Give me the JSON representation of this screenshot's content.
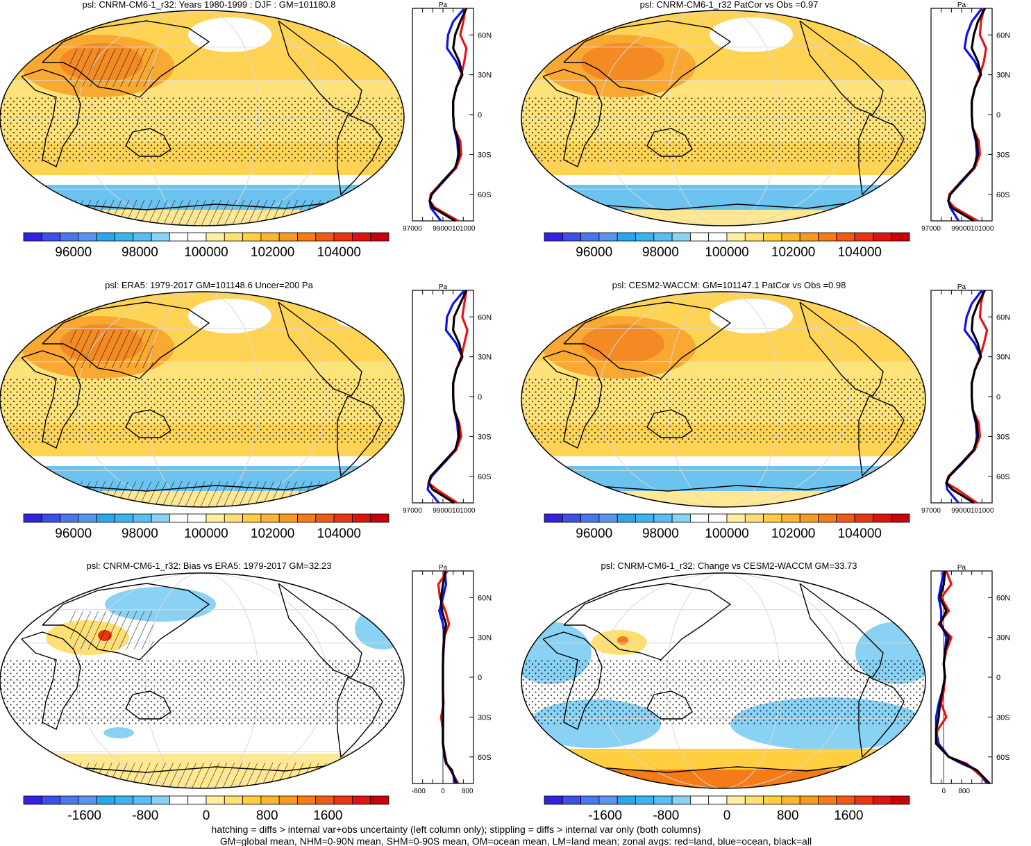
{
  "chart_data": [
    {
      "type": "heatmap",
      "title": "psl: CNRM-CM6-1_r32: Years 1980-1999 : DJF : GM=101180.8",
      "colorbar_ticks": [
        "96000",
        "98000",
        "100000",
        "102000",
        "104000"
      ],
      "colorbar_range": [
        94500,
        105500
      ],
      "colorbar_colors": [
        "#3322dd",
        "#3d4fe6",
        "#4a76ee",
        "#5a94f2",
        "#2ba6ee",
        "#3bb3ee",
        "#58bff0",
        "#8ad2f4",
        "#ffffff",
        "#ffffff",
        "#ffefa0",
        "#ffe070",
        "#ffcf40",
        "#fbb530",
        "#f89a20",
        "#f57a18",
        "#f05a14",
        "#e83612",
        "#dc1410",
        "#c8000a"
      ],
      "profile": {
        "x_ticks": [
          "97000",
          "99000101000"
        ],
        "x_range": [
          97000,
          103000
        ],
        "y_unit": "Pa",
        "lat_ticks": [
          "60N",
          "30N",
          "0",
          "30S",
          "60S"
        ]
      },
      "zonal_avgs": {
        "lat": [
          80,
          70,
          60,
          50,
          40,
          30,
          20,
          10,
          0,
          -10,
          -20,
          -30,
          -40,
          -50,
          -60,
          -65,
          -70,
          -80
        ],
        "land": [
          102200,
          102000,
          101700,
          102300,
          102100,
          101800,
          101300,
          101000,
          101000,
          101100,
          101700,
          101800,
          101300,
          100000,
          98800,
          98700,
          99200,
          101500
        ],
        "ocean": [
          102100,
          101000,
          100500,
          100400,
          101300,
          101900,
          101300,
          101000,
          101000,
          101100,
          101400,
          101500,
          101300,
          100100,
          98900,
          98700,
          98800,
          99800
        ],
        "all": [
          102300,
          101700,
          101200,
          101000,
          101600,
          101900,
          101300,
          101000,
          101000,
          101100,
          101500,
          101600,
          101200,
          100000,
          98900,
          98700,
          99000,
          101200
        ]
      },
      "overlays": [
        "hatching",
        "stippling"
      ]
    },
    {
      "type": "heatmap",
      "title": "psl: CNRM-CM6-1_r32 PatCor vs Obs =0.97",
      "colorbar_ticks": [
        "96000",
        "98000",
        "100000",
        "102000",
        "104000"
      ],
      "colorbar_range": [
        94500,
        105500
      ],
      "colorbar_colors": [
        "#3322dd",
        "#3d4fe6",
        "#4a76ee",
        "#5a94f2",
        "#2ba6ee",
        "#3bb3ee",
        "#58bff0",
        "#8ad2f4",
        "#ffffff",
        "#ffffff",
        "#ffefa0",
        "#ffe070",
        "#ffcf40",
        "#fbb530",
        "#f89a20",
        "#f57a18",
        "#f05a14",
        "#e83612",
        "#dc1410",
        "#c8000a"
      ],
      "profile": {
        "x_ticks": [
          "97000",
          "99000101000"
        ],
        "x_range": [
          97000,
          103000
        ],
        "y_unit": "Pa",
        "lat_ticks": [
          "60N",
          "30N",
          "0",
          "30S",
          "60S"
        ]
      },
      "zonal_avgs": {
        "lat": [
          80,
          70,
          60,
          50,
          40,
          30,
          20,
          10,
          0,
          -10,
          -20,
          -30,
          -40,
          -50,
          -60,
          -65,
          -70,
          -80
        ],
        "land": [
          102200,
          101900,
          101800,
          102400,
          102200,
          101800,
          101300,
          101000,
          101000,
          101100,
          101700,
          101800,
          101300,
          100000,
          98800,
          98700,
          99300,
          101600
        ],
        "ocean": [
          102000,
          101000,
          100500,
          100300,
          101300,
          101900,
          101300,
          101000,
          101000,
          101100,
          101400,
          101500,
          101300,
          100100,
          98900,
          98700,
          98900,
          99700
        ],
        "all": [
          102300,
          101600,
          101200,
          101000,
          101600,
          101900,
          101300,
          101000,
          101000,
          101100,
          101500,
          101600,
          101200,
          100000,
          98900,
          98700,
          99000,
          101200
        ]
      },
      "overlays": [
        "stippling"
      ]
    },
    {
      "type": "heatmap",
      "title": "psl: ERA5: 1979-2017 GM=101148.6 Uncer=200 Pa",
      "colorbar_ticks": [
        "96000",
        "98000",
        "100000",
        "102000",
        "104000"
      ],
      "colorbar_range": [
        94500,
        105500
      ],
      "colorbar_colors": [
        "#3322dd",
        "#3d4fe6",
        "#4a76ee",
        "#5a94f2",
        "#2ba6ee",
        "#3bb3ee",
        "#58bff0",
        "#8ad2f4",
        "#ffffff",
        "#ffffff",
        "#ffefa0",
        "#ffe070",
        "#ffcf40",
        "#fbb530",
        "#f89a20",
        "#f57a18",
        "#f05a14",
        "#e83612",
        "#dc1410",
        "#c8000a"
      ],
      "profile": {
        "x_ticks": [
          "97000",
          "99000101000"
        ],
        "x_range": [
          97000,
          103000
        ],
        "y_unit": "Pa",
        "lat_ticks": [
          "60N",
          "30N",
          "0",
          "30S",
          "60S"
        ]
      },
      "zonal_avgs": {
        "lat": [
          80,
          70,
          60,
          50,
          40,
          30,
          20,
          10,
          0,
          -10,
          -20,
          -30,
          -40,
          -50,
          -60,
          -65,
          -70,
          -80
        ],
        "land": [
          102300,
          102100,
          101900,
          102400,
          102100,
          101800,
          101300,
          101000,
          101000,
          101100,
          101600,
          101800,
          101300,
          100000,
          98800,
          98600,
          99400,
          101400
        ],
        "ocean": [
          102100,
          101000,
          100400,
          100300,
          101300,
          101900,
          101300,
          101000,
          101000,
          101100,
          101400,
          101500,
          101300,
          100100,
          98900,
          98600,
          98500,
          99600
        ],
        "all": [
          102300,
          101700,
          101100,
          101000,
          101600,
          101900,
          101300,
          101000,
          101000,
          101100,
          101500,
          101600,
          101200,
          100000,
          98800,
          98600,
          99000,
          101100
        ]
      },
      "overlays": [
        "hatching",
        "stippling"
      ]
    },
    {
      "type": "heatmap",
      "title": "psl: CESM2-WACCM: GM=101147.1 PatCor vs Obs =0.98",
      "colorbar_ticks": [
        "96000",
        "98000",
        "100000",
        "102000",
        "104000"
      ],
      "colorbar_range": [
        94500,
        105500
      ],
      "colorbar_colors": [
        "#3322dd",
        "#3d4fe6",
        "#4a76ee",
        "#5a94f2",
        "#2ba6ee",
        "#3bb3ee",
        "#58bff0",
        "#8ad2f4",
        "#ffffff",
        "#ffffff",
        "#ffefa0",
        "#ffe070",
        "#ffcf40",
        "#fbb530",
        "#f89a20",
        "#f57a18",
        "#f05a14",
        "#e83612",
        "#dc1410",
        "#c8000a"
      ],
      "profile": {
        "x_ticks": [
          "97000",
          "99000101000"
        ],
        "x_range": [
          97000,
          103000
        ],
        "y_unit": "Pa",
        "lat_ticks": [
          "60N",
          "30N",
          "0",
          "30S",
          "60S"
        ]
      },
      "zonal_avgs": {
        "lat": [
          80,
          70,
          60,
          50,
          40,
          30,
          20,
          10,
          0,
          -10,
          -20,
          -30,
          -40,
          -50,
          -60,
          -65,
          -70,
          -80
        ],
        "land": [
          102200,
          101900,
          101800,
          102500,
          102200,
          101800,
          101300,
          101000,
          101000,
          101100,
          101700,
          101800,
          101300,
          100000,
          98700,
          98500,
          99600,
          101500
        ],
        "ocean": [
          102000,
          101000,
          100500,
          100300,
          101300,
          101900,
          101300,
          101000,
          101000,
          101100,
          101400,
          101500,
          101300,
          100100,
          98800,
          98500,
          98600,
          99700
        ],
        "all": [
          102300,
          101600,
          101100,
          101000,
          101600,
          101900,
          101300,
          101000,
          101000,
          101100,
          101500,
          101600,
          101200,
          100000,
          98800,
          98500,
          99100,
          101200
        ]
      },
      "overlays": [
        "stippling"
      ]
    },
    {
      "type": "heatmap",
      "title": "psl: CNRM-CM6-1_r32: Bias vs ERA5: 1979-2017 GM=32.23",
      "colorbar_ticks": [
        "-1600",
        "-800",
        "0",
        "800",
        "1600"
      ],
      "colorbar_range": [
        -2400,
        2400
      ],
      "colorbar_colors": [
        "#3322dd",
        "#3d4fe6",
        "#4a76ee",
        "#5a94f2",
        "#2ba6ee",
        "#3bb3ee",
        "#58bff0",
        "#8ad2f4",
        "#ffffff",
        "#ffffff",
        "#ffefa0",
        "#ffe070",
        "#ffcf40",
        "#fbb530",
        "#f89a20",
        "#f57a18",
        "#f05a14",
        "#e83612",
        "#dc1410",
        "#c8000a"
      ],
      "profile": {
        "x_ticks": [
          "-800",
          "0",
          "800"
        ],
        "x_range": [
          -1000,
          1000
        ],
        "y_unit": "Pa",
        "lat_ticks": [
          "60N",
          "30N",
          "0",
          "30S",
          "60S"
        ]
      },
      "zonal_avgs": {
        "lat": [
          80,
          70,
          60,
          50,
          40,
          30,
          20,
          10,
          0,
          -10,
          -20,
          -30,
          -40,
          -50,
          -60,
          -65,
          -70,
          -80
        ],
        "land": [
          150,
          -150,
          -100,
          80,
          200,
          30,
          10,
          0,
          0,
          0,
          20,
          -60,
          0,
          0,
          80,
          120,
          250,
          500
        ],
        "ocean": [
          60,
          100,
          0,
          -120,
          0,
          50,
          20,
          0,
          0,
          0,
          0,
          10,
          0,
          0,
          50,
          100,
          300,
          400
        ],
        "all": [
          80,
          0,
          -60,
          -40,
          100,
          40,
          10,
          0,
          0,
          0,
          10,
          0,
          0,
          0,
          60,
          120,
          280,
          450
        ]
      },
      "overlays": [
        "hatching",
        "stippling"
      ]
    },
    {
      "type": "heatmap",
      "title": "psl: CNRM-CM6-1_r32: Change vs CESM2-WACCM GM=33.73",
      "colorbar_ticks": [
        "-1600",
        "-800",
        "0",
        "800",
        "1600"
      ],
      "colorbar_range": [
        -2400,
        2400
      ],
      "colorbar_colors": [
        "#3322dd",
        "#3d4fe6",
        "#4a76ee",
        "#5a94f2",
        "#2ba6ee",
        "#3bb3ee",
        "#58bff0",
        "#8ad2f4",
        "#ffffff",
        "#ffffff",
        "#ffefa0",
        "#ffe070",
        "#ffcf40",
        "#fbb530",
        "#f89a20",
        "#f57a18",
        "#f05a14",
        "#e83612",
        "#dc1410",
        "#c8000a"
      ],
      "profile": {
        "x_ticks": [
          "0",
          "800"
        ],
        "x_range": [
          -500,
          1900
        ],
        "y_unit": "Pa",
        "lat_ticks": [
          "60N",
          "30N",
          "0",
          "30S",
          "60S"
        ]
      },
      "zonal_avgs": {
        "lat": [
          80,
          70,
          60,
          50,
          40,
          30,
          20,
          10,
          0,
          -10,
          -20,
          -30,
          -40,
          -50,
          -60,
          -65,
          -70,
          -80
        ],
        "land": [
          100,
          300,
          -100,
          200,
          -200,
          300,
          100,
          0,
          50,
          0,
          -100,
          100,
          -250,
          -300,
          200,
          900,
          1200,
          1800
        ],
        "ocean": [
          0,
          -100,
          -200,
          -100,
          -100,
          100,
          50,
          0,
          50,
          -50,
          -200,
          -300,
          -300,
          -200,
          200,
          700,
          1300,
          1700
        ],
        "all": [
          50,
          0,
          -150,
          100,
          -150,
          200,
          50,
          0,
          50,
          -50,
          -150,
          -200,
          -300,
          -300,
          200,
          800,
          1300,
          1800
        ]
      },
      "overlays": [
        "stippling"
      ]
    }
  ],
  "footer": {
    "line1": "hatching = diffs > internal var+obs uncertainty (left column only); stippling = diffs > internal var only (both columns)",
    "line2": "GM=global mean, NHM=0-90N mean, SHM=0-90S mean, OM=ocean mean, LM=land mean; zonal avgs: red=land, blue=ocean, black=all"
  },
  "colors": {
    "land": "#ee1111",
    "ocean": "#1111ee",
    "all": "#000000"
  }
}
